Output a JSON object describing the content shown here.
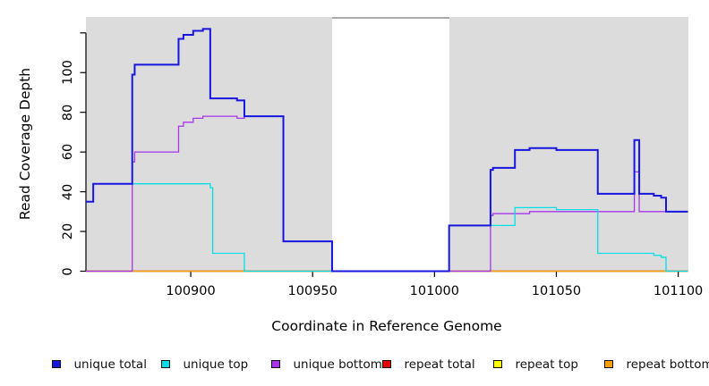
{
  "chart_data": {
    "type": "line",
    "subtype": "step-coverage",
    "title": "",
    "xlabel": "Coordinate in Reference Genome",
    "ylabel": "Read Coverage Depth",
    "xlim": [
      100857,
      101104
    ],
    "ylim": [
      0,
      128
    ],
    "x_ticks": [
      100900,
      100950,
      101000,
      101050,
      101100
    ],
    "y_tick_values": [
      0,
      20,
      40,
      60,
      80,
      100,
      120
    ],
    "y_tick_labels": [
      "0",
      "20",
      "40",
      "60",
      "80",
      "100",
      ""
    ],
    "grid": "off",
    "panel_bg": "#dcdcdc",
    "masked_region": {
      "from": 100958,
      "to": 101006,
      "color": "#ffffff"
    },
    "legend_position": "bottom-horizontal",
    "series": [
      {
        "name": "unique total",
        "color": "#1616e0",
        "width": 2,
        "points": [
          [
            100857,
            35
          ],
          [
            100860,
            44
          ],
          [
            100876,
            99
          ],
          [
            100877,
            104
          ],
          [
            100895,
            117
          ],
          [
            100897,
            119
          ],
          [
            100901,
            121
          ],
          [
            100905,
            122
          ],
          [
            100908,
            87
          ],
          [
            100919,
            86
          ],
          [
            100922,
            78
          ],
          [
            100938,
            15
          ],
          [
            100958,
            0
          ],
          [
            101006,
            23
          ],
          [
            101023,
            51
          ],
          [
            101024,
            52
          ],
          [
            101033,
            61
          ],
          [
            101039,
            62
          ],
          [
            101050,
            61
          ],
          [
            101067,
            39
          ],
          [
            101082,
            66
          ],
          [
            101084,
            39
          ],
          [
            101090,
            38
          ],
          [
            101093,
            37
          ],
          [
            101095,
            30
          ]
        ]
      },
      {
        "name": "unique top",
        "color": "#00dfe8",
        "width": 1.3,
        "points": [
          [
            100857,
            35
          ],
          [
            100860,
            44
          ],
          [
            100908,
            42
          ],
          [
            100909,
            9
          ],
          [
            100922,
            0
          ],
          [
            101006,
            23
          ],
          [
            101033,
            32
          ],
          [
            101050,
            31
          ],
          [
            101067,
            9
          ],
          [
            101090,
            8
          ],
          [
            101093,
            7
          ],
          [
            101095,
            0
          ]
        ]
      },
      {
        "name": "unique bottom",
        "color": "#a735ec",
        "width": 1.3,
        "points": [
          [
            100857,
            0
          ],
          [
            100876,
            55
          ],
          [
            100877,
            60
          ],
          [
            100895,
            73
          ],
          [
            100897,
            75
          ],
          [
            100901,
            77
          ],
          [
            100905,
            78
          ],
          [
            100919,
            77
          ],
          [
            100922,
            78
          ],
          [
            100938,
            15
          ],
          [
            100958,
            0
          ],
          [
            101023,
            28
          ],
          [
            101024,
            29
          ],
          [
            101039,
            30
          ],
          [
            101082,
            50
          ],
          [
            101084,
            30
          ]
        ]
      },
      {
        "name": "repeat total",
        "color": "#e60000",
        "width": 1.3,
        "points": [
          [
            100857,
            0
          ]
        ]
      },
      {
        "name": "repeat top",
        "color": "#ffff00",
        "width": 1.3,
        "points": [
          [
            100857,
            0
          ]
        ]
      },
      {
        "name": "repeat bottom",
        "color": "#ff9e00",
        "width": 1.3,
        "points": [
          [
            100857,
            0
          ]
        ]
      }
    ],
    "draw_order": [
      4,
      3,
      5,
      2,
      1,
      0
    ]
  }
}
